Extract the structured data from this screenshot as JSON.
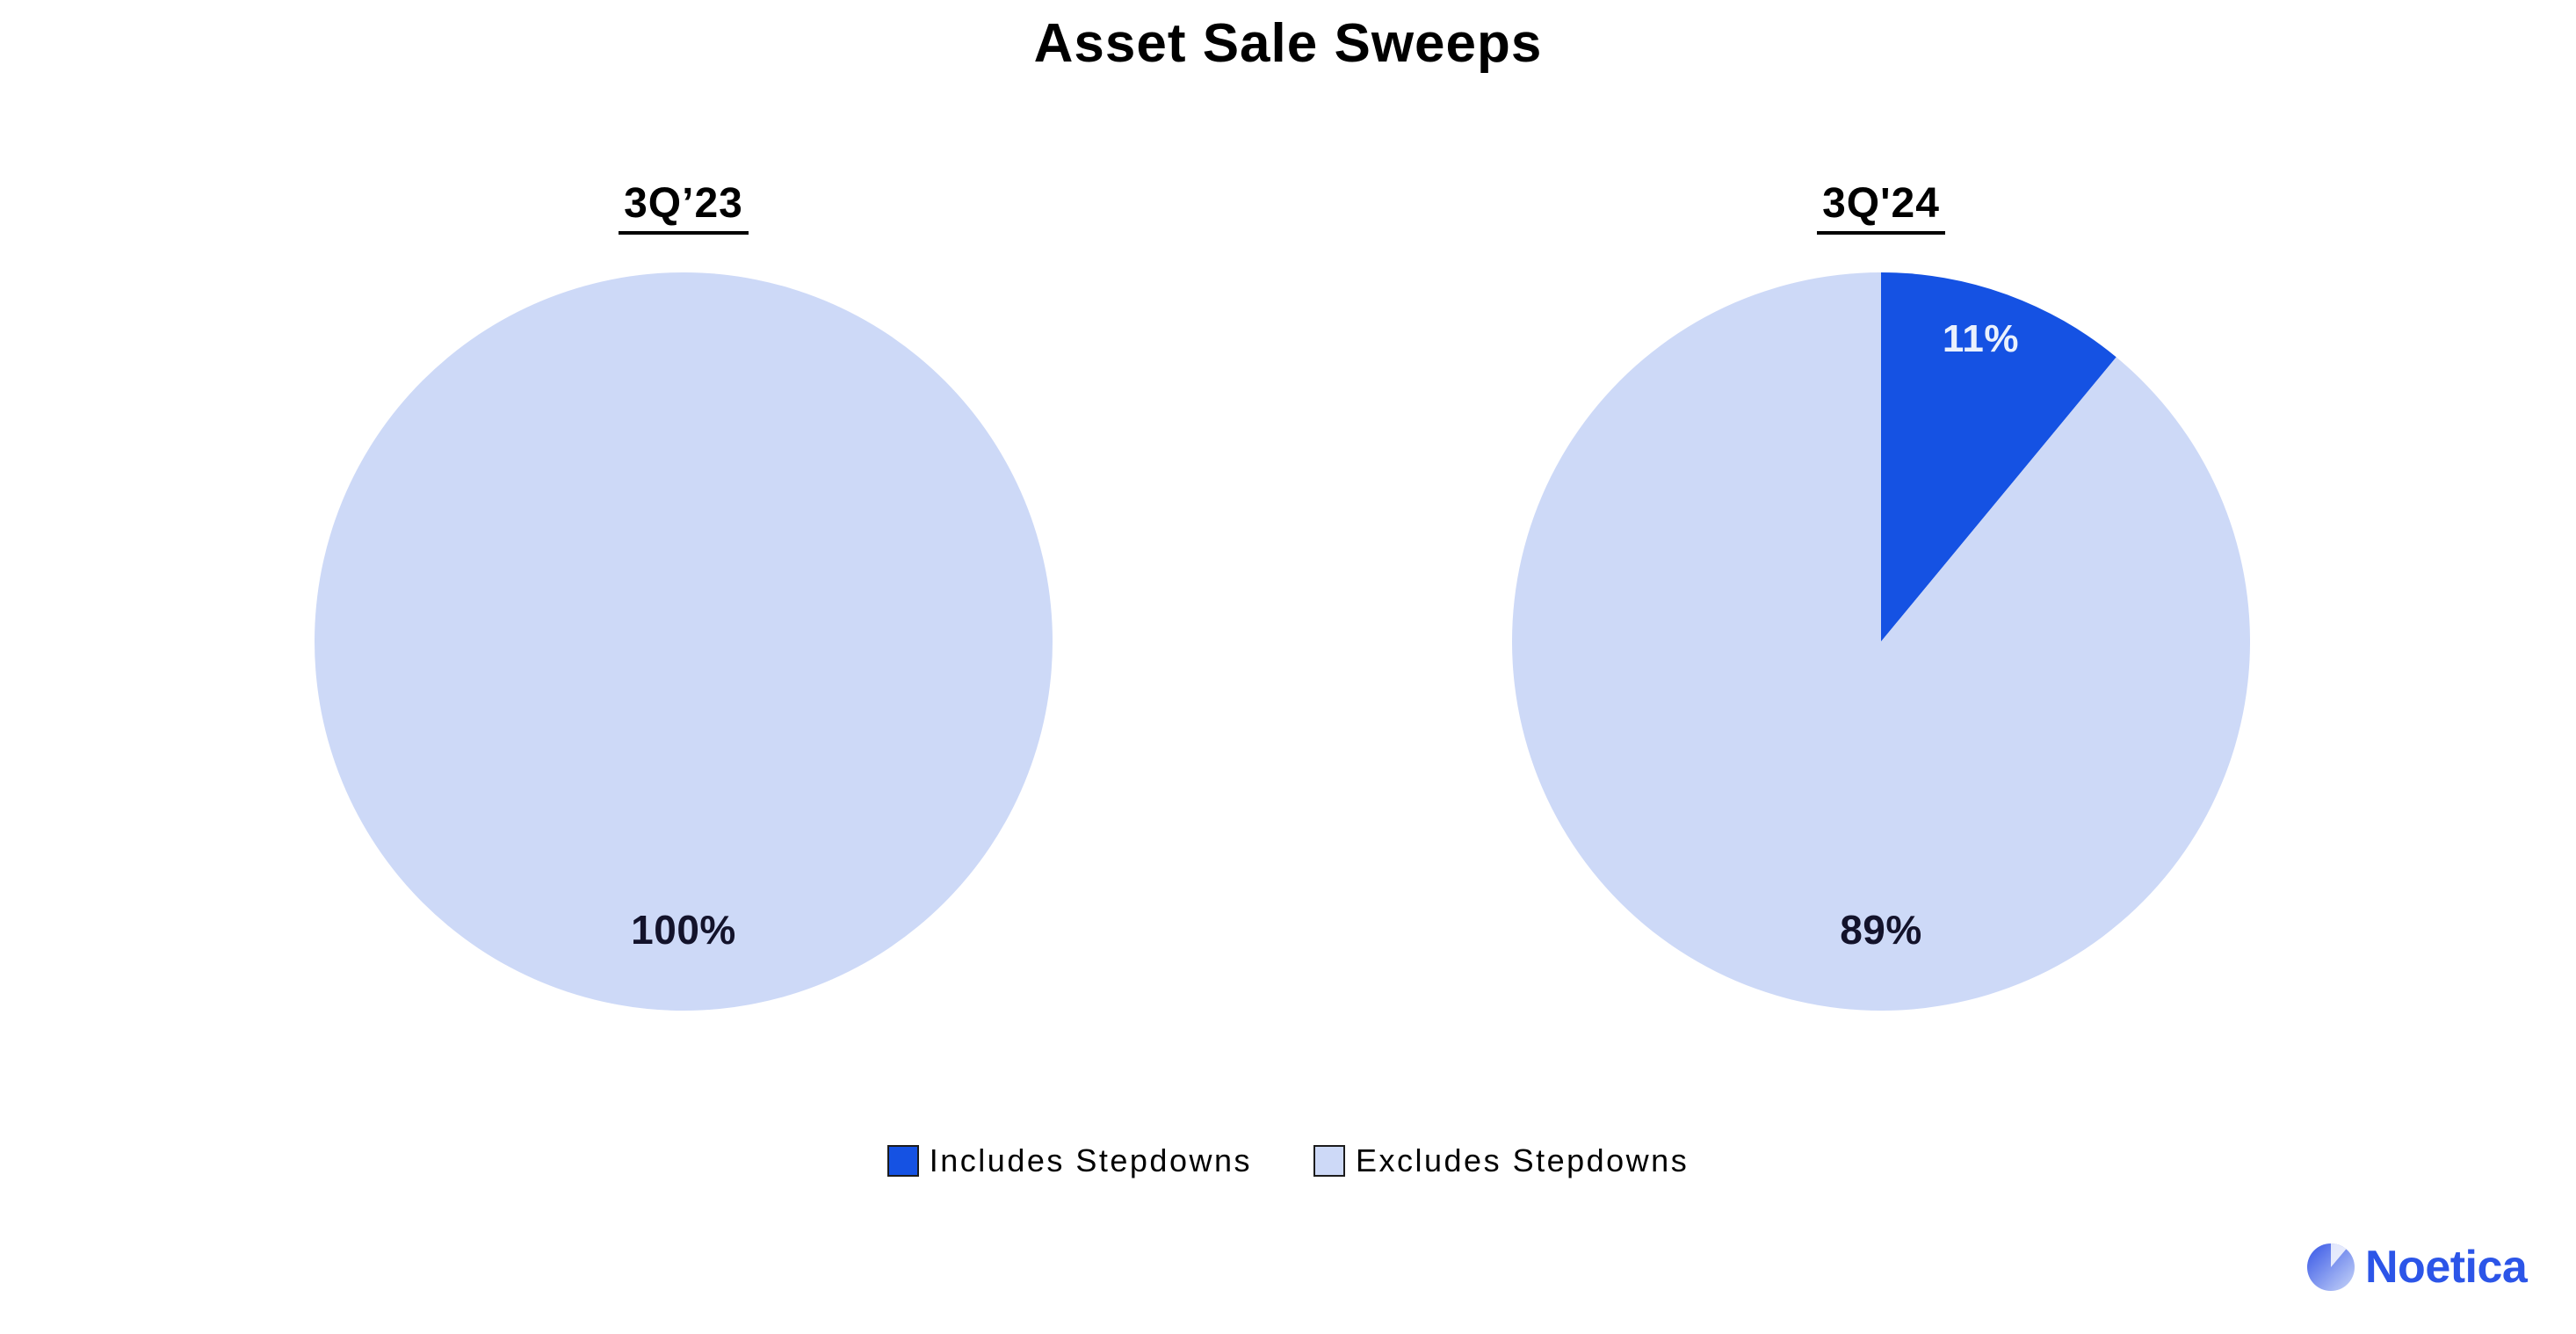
{
  "header": {
    "title": "Asset Sale Sweeps"
  },
  "chart_data": {
    "type": "pie",
    "title": "Asset Sale Sweeps",
    "layout": {
      "arrangement": "two pies side by side",
      "legend_position": "bottom"
    },
    "charts": [
      {
        "title": "3Q’23",
        "slices": [
          {
            "label": "Excludes Stepdowns",
            "value": 100,
            "display": "100%",
            "color": "#CDD9F7"
          }
        ]
      },
      {
        "title": "3Q'24",
        "slices": [
          {
            "label": "Includes Stepdowns",
            "value": 11,
            "display": "11%",
            "color": "#1552E3"
          },
          {
            "label": "Excludes Stepdowns",
            "value": 89,
            "display": "89%",
            "color": "#CDD9F7"
          }
        ]
      }
    ],
    "legend": [
      {
        "label": "Includes Stepdowns",
        "color": "#1552E3"
      },
      {
        "label": "Excludes Stepdowns",
        "color": "#CDD9F7"
      }
    ]
  },
  "branding": {
    "name": "Noetica",
    "color": "#2C55E8"
  }
}
